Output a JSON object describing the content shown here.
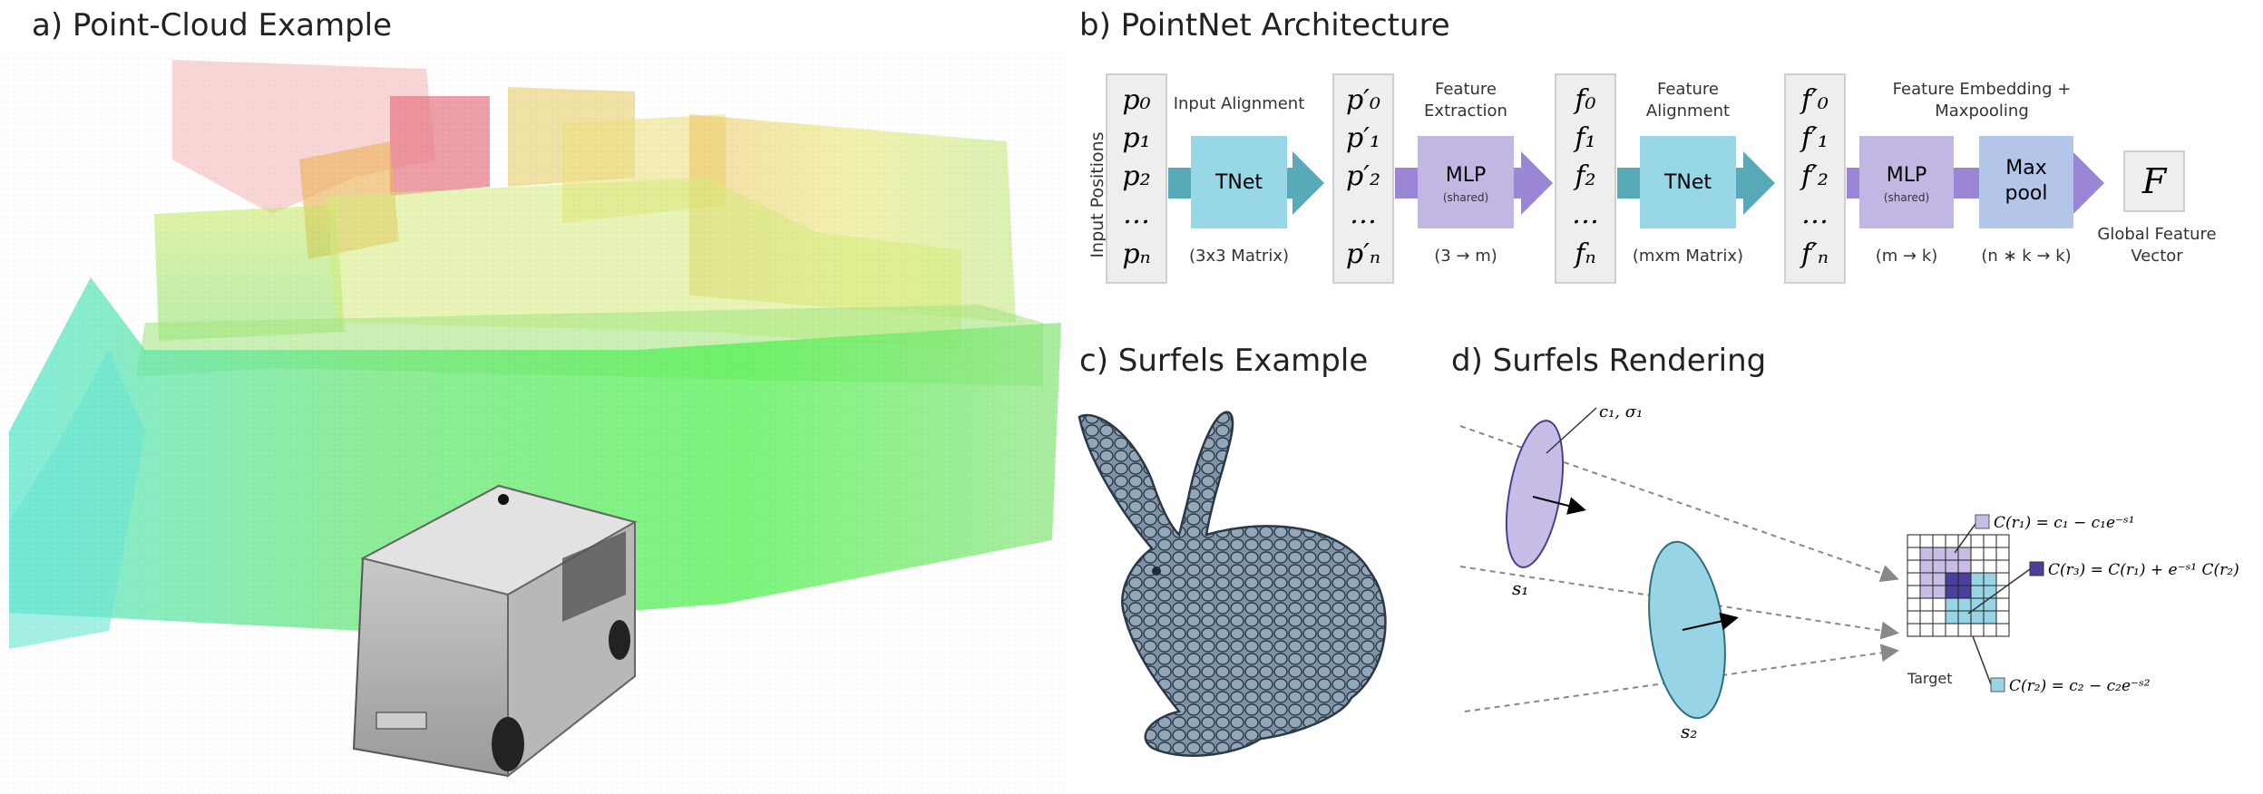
{
  "panels": {
    "a": {
      "title": "a) Point-Cloud Example"
    },
    "b": {
      "title": "b) PointNet Architecture"
    },
    "c": {
      "title": "c) Surfels Example"
    },
    "d": {
      "title": "d) Surfels Rendering"
    }
  },
  "pointnet": {
    "input_side_label": "Input Positions",
    "col_p": [
      "p₀",
      "p₁",
      "p₂",
      "…",
      "pₙ"
    ],
    "col_p_prime": [
      "p′₀",
      "p′₁",
      "p′₂",
      "…",
      "p′ₙ"
    ],
    "col_f": [
      "f₀",
      "f₁",
      "f₂",
      "…",
      "fₙ"
    ],
    "col_f_prime": [
      "f′₀",
      "f′₁",
      "f′₂",
      "…",
      "f′ₙ"
    ],
    "tnet1": {
      "top": "Input Alignment",
      "label": "TNet",
      "bottom": "(3x3 Matrix)"
    },
    "mlp1": {
      "top_line1": "Feature",
      "top_line2": "Extraction",
      "label": "MLP",
      "sub": "(shared)",
      "bottom": "(3 → m)"
    },
    "tnet2": {
      "top_line1": "Feature",
      "top_line2": "Alignment",
      "label": "TNet",
      "bottom": "(mxm Matrix)"
    },
    "mlp2": {
      "top_line1": "Feature Embedding +",
      "top_line2": "Maxpooling",
      "label": "MLP",
      "sub": "(shared)",
      "bottom": "(m → k)"
    },
    "maxpool": {
      "label_line1": "Max",
      "label_line2": "pool",
      "bottom": "(n ∗ k → k)"
    },
    "output": {
      "symbol": "F",
      "caption_line1": "Global Feature",
      "caption_line2": "Vector"
    }
  },
  "rendering": {
    "s1_top_label": "c₁, σ₁",
    "s1_label": "s₁",
    "s2_label": "s₂",
    "target_label": "Target",
    "eq_r1": "C(r₁) = c₁ − c₁e⁻ˢ¹",
    "eq_r3": "C(r₃) = C(r₁) + e⁻ˢ¹ C(r₂)",
    "eq_r2": "C(r₂) = c₂ − c₂e⁻ˢ²"
  },
  "colors": {
    "tnet": "#97d7e6",
    "mlp": "#c2b6e3",
    "maxpool": "#b3c6e8",
    "arrow_teal": "#58aab8",
    "arrow_purple": "#9b86d6",
    "col_box": "#eeeeee",
    "surfel1": "#c8bde6",
    "surfel2": "#97d5e6",
    "r3": "#4b3f9e",
    "bunny": "#7f93a8"
  }
}
